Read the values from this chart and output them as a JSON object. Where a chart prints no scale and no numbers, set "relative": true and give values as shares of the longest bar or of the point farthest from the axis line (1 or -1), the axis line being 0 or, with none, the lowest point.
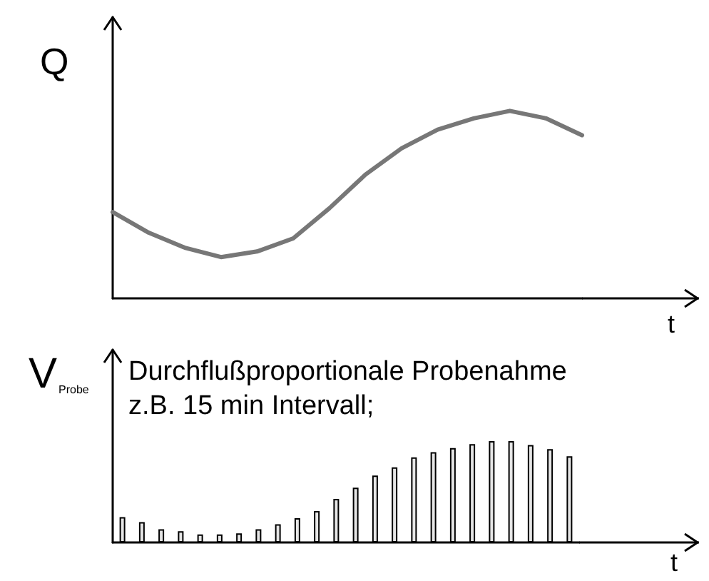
{
  "chart_data": [
    {
      "type": "line",
      "ylabel": "Q",
      "xlabel": "t",
      "relative": true,
      "tick_labels": false,
      "grid": false,
      "marker": "none",
      "line_style": "solid",
      "categories": [
        null,
        null,
        null,
        null,
        null,
        null,
        null,
        null,
        null,
        null,
        null,
        null,
        null,
        null
      ],
      "series": [
        {
          "color": "#777777",
          "values": [
            0.46,
            0.35,
            0.27,
            0.22,
            0.25,
            0.32,
            0.48,
            0.66,
            0.8,
            0.9,
            0.96,
            1.0,
            0.96,
            0.87
          ]
        }
      ]
    },
    {
      "type": "bar",
      "ylabel": "V$_{Probe}$",
      "xlabel": "t",
      "relative": true,
      "tick_labels": false,
      "grid": false,
      "annotations": [
        "Durchflußproportionale Probenahme",
        "z.B. 15 min Intervall;"
      ],
      "categories": [
        null,
        null,
        null,
        null,
        null,
        null,
        null,
        null,
        null,
        null,
        null,
        null,
        null,
        null,
        null,
        null,
        null,
        null,
        null,
        null,
        null,
        null,
        null,
        null
      ],
      "series": [
        {
          "color": "#e6e6e6",
          "values": [
            0.25,
            0.2,
            0.13,
            0.11,
            0.08,
            0.08,
            0.09,
            0.13,
            0.18,
            0.24,
            0.31,
            0.43,
            0.54,
            0.66,
            0.74,
            0.84,
            0.89,
            0.93,
            0.97,
            1.0,
            1.0,
            0.96,
            0.92,
            0.85
          ]
        }
      ]
    }
  ]
}
